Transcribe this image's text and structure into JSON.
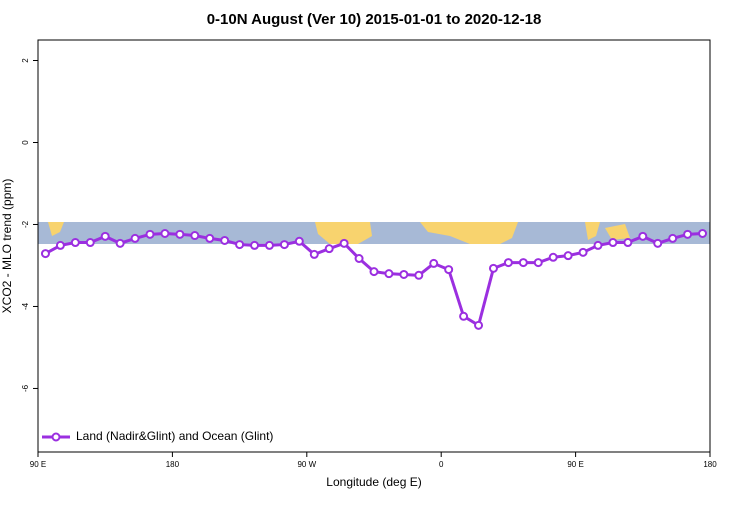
{
  "chart_data": {
    "type": "line",
    "title": "0-10N August (Ver 10)   2015-01-01 to 2020-12-18",
    "x_label": "Longitude (deg E)",
    "y_label": "XCO2 - MLO trend (ppm)",
    "x": [
      95,
      105,
      115,
      125,
      135,
      145,
      155,
      165,
      175,
      185,
      195,
      205,
      215,
      225,
      235,
      245,
      255,
      265,
      275,
      285,
      295,
      305,
      315,
      325,
      335,
      345,
      355,
      365,
      375,
      385,
      395,
      405,
      415,
      425,
      435,
      445,
      455,
      465,
      475,
      485,
      495,
      505,
      515,
      525,
      535
    ],
    "series": [
      {
        "name": "Land (Nadir&Glint) and Ocean (Glint)",
        "color": "#9b2fe0",
        "values": [
          -2.71,
          -2.51,
          -2.44,
          -2.44,
          -2.29,
          -2.46,
          -2.34,
          -2.24,
          -2.22,
          -2.24,
          -2.27,
          -2.34,
          -2.39,
          -2.49,
          -2.51,
          -2.51,
          -2.49,
          -2.41,
          -2.73,
          -2.59,
          -2.46,
          -2.83,
          -3.15,
          -3.2,
          -3.22,
          -3.24,
          -2.95,
          -3.1,
          -4.24,
          -4.46,
          -3.07,
          -2.93,
          -2.93,
          -2.93,
          -2.8,
          -2.76,
          -2.68,
          -2.51,
          -2.44,
          -2.44,
          -2.29,
          -2.46,
          -2.34,
          -2.24,
          -2.22
        ]
      }
    ],
    "xlim": [
      90,
      540
    ],
    "xticks": [
      {
        "value": 90,
        "label": "90 E"
      },
      {
        "value": 180,
        "label": "180"
      },
      {
        "value": 270,
        "label": "90 W"
      },
      {
        "value": 360,
        "label": "0"
      },
      {
        "value": 450,
        "label": "90 E"
      },
      {
        "value": 540,
        "label": "180"
      }
    ],
    "ylim": [
      -7.55,
      2.5
    ],
    "yticks": [
      -6,
      -4,
      -2,
      0,
      2
    ],
    "legend": "bottom-left"
  }
}
